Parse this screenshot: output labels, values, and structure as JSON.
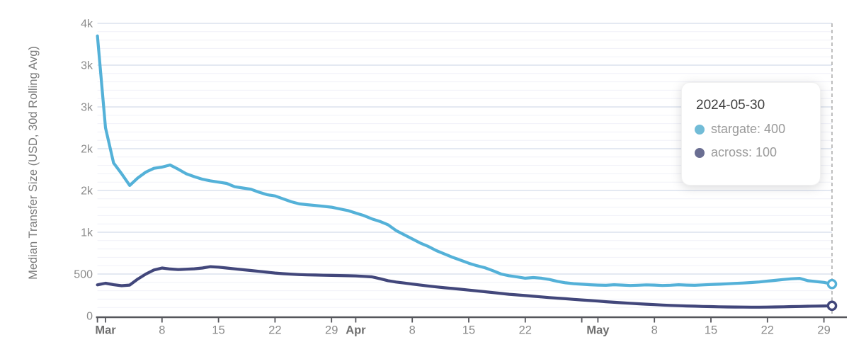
{
  "chart_data": {
    "type": "line",
    "title": "",
    "xlabel": "",
    "ylabel": "Median Transfer Size (USD, 30d Rolling Avg)",
    "x_start_date": "2024-02-29",
    "x_end_date": "2024-05-30",
    "x_cadence": "daily",
    "ylim": [
      0,
      3700
    ],
    "grid": "horizontal, major every 500, minor every 100",
    "legend_position": "none (tooltip only)",
    "y_ticks": [
      {
        "value": 0,
        "label": "0"
      },
      {
        "value": 500,
        "label": "500"
      },
      {
        "value": 1000,
        "label": "1k"
      },
      {
        "value": 1500,
        "label": "2k"
      },
      {
        "value": 2000,
        "label": "2k"
      },
      {
        "value": 2500,
        "label": "3k"
      },
      {
        "value": 3000,
        "label": "3k"
      },
      {
        "value": 3500,
        "label": "4k"
      }
    ],
    "y_minor_step": 100,
    "x_ticks": [
      {
        "day": 0,
        "label": "",
        "bold": false
      },
      {
        "day": 1,
        "label": "Mar",
        "bold": true
      },
      {
        "day": 8,
        "label": "8",
        "bold": false
      },
      {
        "day": 15,
        "label": "15",
        "bold": false
      },
      {
        "day": 22,
        "label": "22",
        "bold": false
      },
      {
        "day": 29,
        "label": "29",
        "bold": false
      },
      {
        "day": 32,
        "label": "Apr",
        "bold": true
      },
      {
        "day": 39,
        "label": "8",
        "bold": false
      },
      {
        "day": 46,
        "label": "15",
        "bold": false
      },
      {
        "day": 53,
        "label": "22",
        "bold": false
      },
      {
        "day": 60,
        "label": "",
        "bold": false
      },
      {
        "day": 62,
        "label": "May",
        "bold": true
      },
      {
        "day": 69,
        "label": "8",
        "bold": false
      },
      {
        "day": 76,
        "label": "15",
        "bold": false
      },
      {
        "day": 83,
        "label": "22",
        "bold": false
      },
      {
        "day": 90,
        "label": "29",
        "bold": false
      }
    ],
    "crosshair_date": "2024-05-30",
    "series": [
      {
        "name": "stargate",
        "color": "#54B1D8",
        "values": [
          3350,
          2250,
          1830,
          1700,
          1560,
          1650,
          1720,
          1765,
          1780,
          1805,
          1755,
          1700,
          1665,
          1635,
          1615,
          1600,
          1585,
          1545,
          1530,
          1515,
          1480,
          1450,
          1435,
          1400,
          1365,
          1340,
          1330,
          1320,
          1310,
          1300,
          1280,
          1260,
          1230,
          1200,
          1160,
          1130,
          1090,
          1020,
          970,
          920,
          870,
          830,
          780,
          740,
          700,
          665,
          630,
          600,
          575,
          540,
          500,
          480,
          465,
          450,
          458,
          450,
          435,
          412,
          395,
          385,
          378,
          372,
          368,
          365,
          372,
          368,
          363,
          366,
          370,
          368,
          363,
          366,
          372,
          368,
          365,
          370,
          375,
          378,
          383,
          388,
          392,
          398,
          405,
          415,
          425,
          435,
          443,
          448,
          420,
          410,
          400,
          380
        ]
      },
      {
        "name": "across",
        "color": "#42477B",
        "values": [
          370,
          390,
          372,
          360,
          368,
          440,
          500,
          548,
          572,
          560,
          553,
          558,
          563,
          572,
          588,
          582,
          572,
          562,
          552,
          542,
          532,
          522,
          512,
          504,
          498,
          493,
          490,
          488,
          486,
          484,
          482,
          480,
          477,
          472,
          466,
          444,
          420,
          404,
          392,
          380,
          368,
          357,
          346,
          336,
          327,
          318,
          308,
          298,
          288,
          278,
          268,
          258,
          250,
          242,
          234,
          226,
          218,
          211,
          204,
          197,
          190,
          183,
          176,
          169,
          162,
          156,
          150,
          144,
          139,
          134,
          129,
          125,
          121,
          118,
          115,
          112,
          110,
          108,
          106,
          105,
          104,
          103,
          103,
          104,
          106,
          108,
          110,
          112,
          114,
          116,
          118,
          120
        ]
      }
    ]
  },
  "tooltip": {
    "title": "2024-05-30",
    "items": [
      {
        "name": "stargate",
        "text": "stargate: 400",
        "color": "#72BCD7"
      },
      {
        "name": "across",
        "text": "across: 100",
        "color": "#6A6E92"
      }
    ]
  },
  "colors": {
    "grid_major": "#dbe2ee",
    "grid_minor": "#f0f1f8",
    "axis_line": "#55565b",
    "tick_label": "#8b8b8b",
    "month_label": "#6f6f6f",
    "y_axis_title": "#7b7b7b",
    "crosshair_dashed": "#a8a8a8",
    "tooltip_title": "#3f3f3f",
    "tooltip_text": "#9a9a9a",
    "background": "#ffffff"
  }
}
